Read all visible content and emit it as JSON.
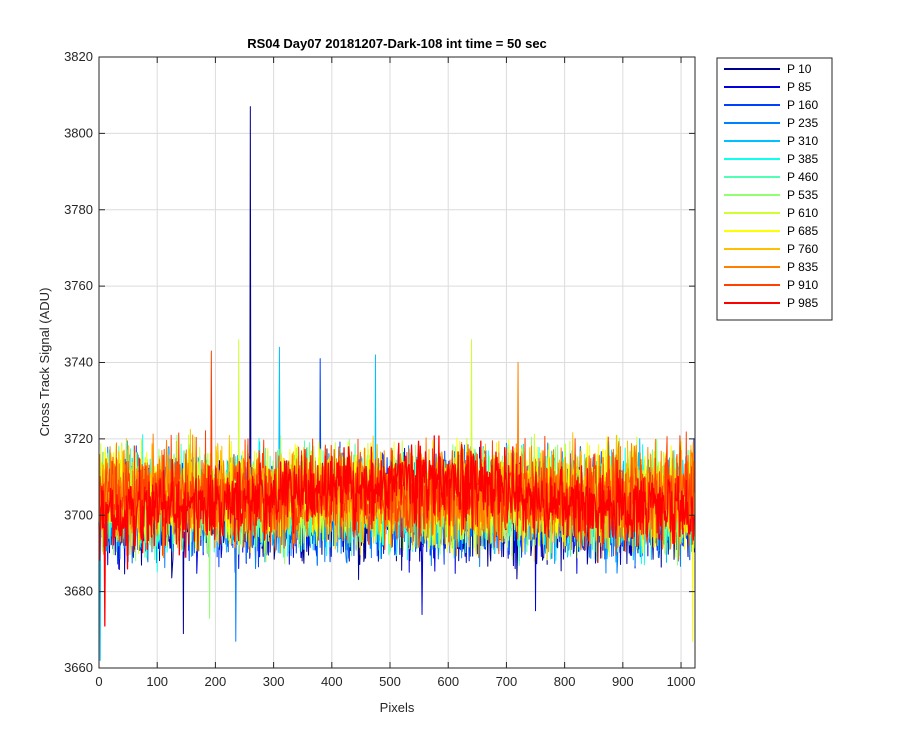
{
  "chart_data": {
    "type": "line",
    "title": "RS04 Day07 20181207-Dark-108 int time = 50 sec",
    "xlabel": "Pixels",
    "ylabel": "Cross Track Signal (ADU)",
    "xlim": [
      0,
      1024
    ],
    "ylim": [
      3660,
      3820
    ],
    "xticks": [
      0,
      100,
      200,
      300,
      400,
      500,
      600,
      700,
      800,
      900,
      1000
    ],
    "yticks": [
      3660,
      3680,
      3700,
      3720,
      3740,
      3760,
      3780,
      3800,
      3820
    ],
    "grid": true,
    "legend_position": "outside-top-right",
    "series": [
      {
        "name": "P 10",
        "color": "#00008f",
        "center": [
          [
            0,
            3700
          ],
          [
            1024,
            3700
          ]
        ],
        "amplitude": 11,
        "spikes": [
          [
            260,
            3807
          ],
          [
            145,
            3669
          ]
        ]
      },
      {
        "name": "P 85",
        "color": "#0000e0",
        "center": [
          [
            0,
            3701
          ],
          [
            1024,
            3701
          ]
        ],
        "amplitude": 11,
        "spikes": [
          [
            555,
            3674
          ],
          [
            750,
            3675
          ]
        ]
      },
      {
        "name": "P 160",
        "color": "#0040ff",
        "center": [
          [
            0,
            3702
          ],
          [
            1024,
            3702
          ]
        ],
        "amplitude": 11,
        "spikes": [
          [
            380,
            3741
          ],
          [
            1022,
            3720
          ]
        ]
      },
      {
        "name": "P 235",
        "color": "#0080ff",
        "center": [
          [
            0,
            3702
          ],
          [
            1024,
            3702
          ]
        ],
        "amplitude": 11,
        "spikes": [
          [
            235,
            3667
          ]
        ]
      },
      {
        "name": "P 310",
        "color": "#00c0ff",
        "center": [
          [
            0,
            3703
          ],
          [
            1024,
            3703
          ]
        ],
        "amplitude": 11,
        "spikes": [
          [
            310,
            3744
          ],
          [
            475,
            3742
          ],
          [
            2,
            3662
          ]
        ]
      },
      {
        "name": "P 385",
        "color": "#10ffef",
        "center": [
          [
            0,
            3703
          ],
          [
            1024,
            3703
          ]
        ],
        "amplitude": 11,
        "spikes": []
      },
      {
        "name": "P 460",
        "color": "#50ffaf",
        "center": [
          [
            0,
            3704
          ],
          [
            1024,
            3704
          ]
        ],
        "amplitude": 11,
        "spikes": []
      },
      {
        "name": "P 535",
        "color": "#90ff70",
        "center": [
          [
            0,
            3704
          ],
          [
            1024,
            3704
          ]
        ],
        "amplitude": 11,
        "spikes": [
          [
            190,
            3673
          ]
        ]
      },
      {
        "name": "P 610",
        "color": "#d0ff30",
        "center": [
          [
            0,
            3705
          ],
          [
            1024,
            3705
          ]
        ],
        "amplitude": 11,
        "spikes": [
          [
            240,
            3746
          ],
          [
            640,
            3746
          ]
        ]
      },
      {
        "name": "P 685",
        "color": "#ffff00",
        "center": [
          [
            0,
            3705
          ],
          [
            1024,
            3705
          ]
        ],
        "amplitude": 11,
        "spikes": [
          [
            1020,
            3667
          ]
        ]
      },
      {
        "name": "P 760",
        "color": "#ffc000",
        "center": [
          [
            0,
            3705
          ],
          [
            1024,
            3705
          ]
        ],
        "amplitude": 11,
        "spikes": []
      },
      {
        "name": "P 835",
        "color": "#ff8000",
        "center": [
          [
            0,
            3705
          ],
          [
            1024,
            3705
          ]
        ],
        "amplitude": 11,
        "spikes": [
          [
            720,
            3740
          ]
        ]
      },
      {
        "name": "P 910",
        "color": "#ff4000",
        "center": [
          [
            0,
            3705
          ],
          [
            1024,
            3705
          ]
        ],
        "amplitude": 11,
        "spikes": [
          [
            193,
            3743
          ]
        ]
      },
      {
        "name": "P 985",
        "color": "#ff0000",
        "center": [
          [
            0,
            3700
          ],
          [
            250,
            3703
          ],
          [
            450,
            3709
          ],
          [
            650,
            3708
          ],
          [
            850,
            3702
          ],
          [
            1024,
            3700
          ]
        ],
        "amplitude": 9,
        "spikes": [
          [
            10,
            3671
          ]
        ]
      }
    ]
  }
}
